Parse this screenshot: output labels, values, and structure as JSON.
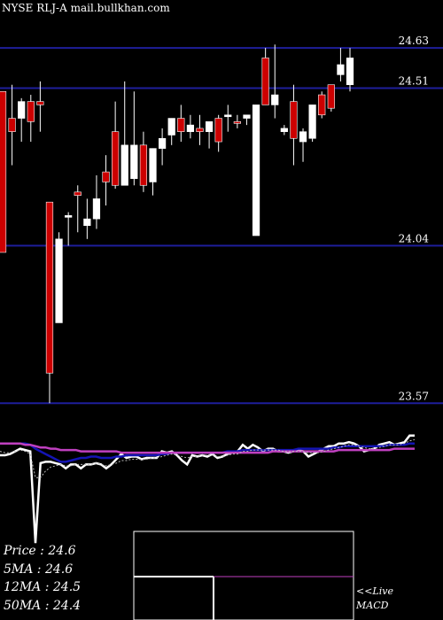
{
  "title": "NYSE RLJ-A mail.bullkhan.com",
  "price_stats": [
    {
      "label": "Price",
      "value": "24.6"
    },
    {
      "label": "5MA",
      "value": "24.6"
    },
    {
      "label": "12MA",
      "value": "24.5"
    },
    {
      "label": "50MA",
      "value": "24.4"
    }
  ],
  "live_label": "<<Live",
  "macd_label": "MACD",
  "chart_data": [
    {
      "type": "candlestick",
      "ylim": [
        23.51,
        24.72
      ],
      "price_levels": [
        "24.63",
        "24.51",
        "24.04",
        "23.57"
      ],
      "candles": [
        {
          "o": 24.5,
          "h": 24.5,
          "l": 24.02,
          "c": 24.02,
          "dir": "down"
        },
        {
          "o": 24.42,
          "h": 24.52,
          "l": 24.28,
          "c": 24.38,
          "dir": "down"
        },
        {
          "o": 24.47,
          "h": 24.48,
          "l": 24.35,
          "c": 24.42,
          "dir": "up"
        },
        {
          "o": 24.41,
          "h": 24.49,
          "l": 24.35,
          "c": 24.47,
          "dir": "down"
        },
        {
          "o": 24.47,
          "h": 24.53,
          "l": 24.38,
          "c": 24.46,
          "dir": "down"
        },
        {
          "o": 24.17,
          "h": 24.17,
          "l": 23.57,
          "c": 23.66,
          "dir": "down"
        },
        {
          "o": 24.06,
          "h": 24.08,
          "l": 23.81,
          "c": 23.81,
          "dir": "up"
        },
        {
          "o": 24.13,
          "h": 24.14,
          "l": 24.04,
          "c": 24.13,
          "dir": "up"
        },
        {
          "o": 24.2,
          "h": 24.22,
          "l": 24.08,
          "c": 24.19,
          "dir": "down"
        },
        {
          "o": 24.1,
          "h": 24.18,
          "l": 24.06,
          "c": 24.12,
          "dir": "up"
        },
        {
          "o": 24.12,
          "h": 24.25,
          "l": 24.09,
          "c": 24.18,
          "dir": "up"
        },
        {
          "o": 24.26,
          "h": 24.31,
          "l": 24.16,
          "c": 24.23,
          "dir": "down"
        },
        {
          "o": 24.38,
          "h": 24.47,
          "l": 24.21,
          "c": 24.22,
          "dir": "down"
        },
        {
          "o": 24.22,
          "h": 24.53,
          "l": 24.22,
          "c": 24.34,
          "dir": "up"
        },
        {
          "o": 24.24,
          "h": 24.5,
          "l": 24.22,
          "c": 24.34,
          "dir": "up"
        },
        {
          "o": 24.34,
          "h": 24.38,
          "l": 24.2,
          "c": 24.22,
          "dir": "down"
        },
        {
          "o": 24.23,
          "h": 24.33,
          "l": 24.19,
          "c": 24.33,
          "dir": "up"
        },
        {
          "o": 24.33,
          "h": 24.39,
          "l": 24.28,
          "c": 24.36,
          "dir": "up"
        },
        {
          "o": 24.37,
          "h": 24.42,
          "l": 24.34,
          "c": 24.42,
          "dir": "up"
        },
        {
          "o": 24.42,
          "h": 24.46,
          "l": 24.35,
          "c": 24.38,
          "dir": "down"
        },
        {
          "o": 24.4,
          "h": 24.43,
          "l": 24.36,
          "c": 24.38,
          "dir": "up"
        },
        {
          "o": 24.38,
          "h": 24.43,
          "l": 24.34,
          "c": 24.39,
          "dir": "down"
        },
        {
          "o": 24.38,
          "h": 24.41,
          "l": 24.33,
          "c": 24.41,
          "dir": "up"
        },
        {
          "o": 24.42,
          "h": 24.43,
          "l": 24.32,
          "c": 24.35,
          "dir": "down"
        },
        {
          "o": 24.43,
          "h": 24.46,
          "l": 24.38,
          "c": 24.43,
          "dir": "up"
        },
        {
          "o": 24.41,
          "h": 24.43,
          "l": 24.39,
          "c": 24.41,
          "dir": "down"
        },
        {
          "o": 24.42,
          "h": 24.43,
          "l": 24.4,
          "c": 24.43,
          "dir": "up"
        },
        {
          "o": 24.46,
          "h": 24.46,
          "l": 24.07,
          "c": 24.07,
          "dir": "up"
        },
        {
          "o": 24.46,
          "h": 24.63,
          "l": 24.46,
          "c": 24.6,
          "dir": "down"
        },
        {
          "o": 24.49,
          "h": 24.64,
          "l": 24.42,
          "c": 24.46,
          "dir": "up"
        },
        {
          "o": 24.39,
          "h": 24.4,
          "l": 24.37,
          "c": 24.38,
          "dir": "up"
        },
        {
          "o": 24.47,
          "h": 24.52,
          "l": 24.28,
          "c": 24.36,
          "dir": "down"
        },
        {
          "o": 24.38,
          "h": 24.39,
          "l": 24.29,
          "c": 24.35,
          "dir": "up"
        },
        {
          "o": 24.36,
          "h": 24.46,
          "l": 24.35,
          "c": 24.46,
          "dir": "up"
        },
        {
          "o": 24.49,
          "h": 24.5,
          "l": 24.42,
          "c": 24.43,
          "dir": "down"
        },
        {
          "o": 24.45,
          "h": 24.52,
          "l": 24.44,
          "c": 24.52,
          "dir": "down"
        },
        {
          "o": 24.58,
          "h": 24.63,
          "l": 24.53,
          "c": 24.55,
          "dir": "up"
        },
        {
          "o": 24.6,
          "h": 24.63,
          "l": 24.5,
          "c": 24.52,
          "dir": "up"
        }
      ]
    },
    {
      "type": "line",
      "ylim": [
        0,
        1
      ],
      "series": [
        {
          "color": "#ffffff",
          "values": [
            0.77,
            0.77,
            0.78,
            0.8,
            0.82,
            0.81,
            0.8,
            0.1,
            0.71,
            0.72,
            0.72,
            0.71,
            0.7,
            0.67,
            0.7,
            0.7,
            0.67,
            0.7,
            0.7,
            0.71,
            0.7,
            0.67,
            0.7,
            0.74,
            0.78,
            0.75,
            0.76,
            0.76,
            0.74,
            0.75,
            0.75,
            0.75,
            0.8,
            0.79,
            0.8,
            0.77,
            0.73,
            0.7,
            0.77,
            0.76,
            0.77,
            0.76,
            0.78,
            0.75,
            0.76,
            0.78,
            0.79,
            0.8,
            0.85,
            0.82,
            0.85,
            0.83,
            0.8,
            0.82,
            0.82,
            0.8,
            0.8,
            0.79,
            0.8,
            0.81,
            0.8,
            0.76,
            0.78,
            0.8,
            0.82,
            0.84,
            0.84,
            0.86,
            0.86,
            0.87,
            0.86,
            0.84,
            0.8,
            0.81,
            0.82,
            0.85,
            0.86,
            0.87,
            0.85,
            0.86,
            0.87,
            0.92,
            0.92
          ]
        },
        {
          "color": "#1414b4",
          "values": [
            0.86,
            0.86,
            0.86,
            0.86,
            0.86,
            0.86,
            0.85,
            0.82,
            0.8,
            0.78,
            0.76,
            0.74,
            0.72,
            0.72,
            0.73,
            0.74,
            0.75,
            0.75,
            0.76,
            0.76,
            0.75,
            0.75,
            0.75,
            0.76,
            0.76,
            0.77,
            0.77,
            0.77,
            0.77,
            0.77,
            0.77,
            0.77,
            0.78,
            0.78,
            0.79,
            0.79,
            0.79,
            0.79,
            0.79,
            0.79,
            0.79,
            0.79,
            0.79,
            0.79,
            0.79,
            0.8,
            0.8,
            0.8,
            0.81,
            0.81,
            0.81,
            0.81,
            0.81,
            0.81,
            0.81,
            0.81,
            0.81,
            0.81,
            0.81,
            0.82,
            0.82,
            0.82,
            0.82,
            0.82,
            0.82,
            0.82,
            0.83,
            0.83,
            0.84,
            0.84,
            0.84,
            0.84,
            0.84,
            0.84,
            0.84,
            0.84,
            0.84,
            0.85,
            0.85,
            0.85,
            0.85,
            0.86,
            0.86
          ]
        },
        {
          "color": "#c040c0",
          "values": [
            0.86,
            0.86,
            0.86,
            0.86,
            0.86,
            0.85,
            0.85,
            0.84,
            0.83,
            0.83,
            0.82,
            0.82,
            0.81,
            0.81,
            0.81,
            0.81,
            0.8,
            0.8,
            0.8,
            0.8,
            0.8,
            0.8,
            0.8,
            0.8,
            0.79,
            0.79,
            0.79,
            0.79,
            0.79,
            0.79,
            0.79,
            0.79,
            0.79,
            0.79,
            0.79,
            0.79,
            0.79,
            0.79,
            0.79,
            0.79,
            0.79,
            0.79,
            0.79,
            0.79,
            0.79,
            0.79,
            0.79,
            0.79,
            0.79,
            0.79,
            0.79,
            0.79,
            0.79,
            0.79,
            0.8,
            0.8,
            0.8,
            0.8,
            0.8,
            0.8,
            0.8,
            0.8,
            0.8,
            0.8,
            0.8,
            0.8,
            0.8,
            0.81,
            0.81,
            0.81,
            0.81,
            0.81,
            0.81,
            0.81,
            0.81,
            0.81,
            0.81,
            0.81,
            0.82,
            0.82,
            0.82,
            0.82,
            0.82
          ]
        },
        {
          "color": "#bbbbbb",
          "dashed": true,
          "values": [
            0.8,
            0.79,
            0.79,
            0.8,
            0.81,
            0.8,
            0.78,
            0.6,
            0.6,
            0.65,
            0.68,
            0.69,
            0.7,
            0.69,
            0.69,
            0.7,
            0.7,
            0.7,
            0.7,
            0.71,
            0.7,
            0.69,
            0.7,
            0.71,
            0.73,
            0.73,
            0.74,
            0.74,
            0.74,
            0.74,
            0.75,
            0.75,
            0.76,
            0.77,
            0.78,
            0.77,
            0.76,
            0.75,
            0.76,
            0.76,
            0.77,
            0.77,
            0.77,
            0.76,
            0.76,
            0.77,
            0.78,
            0.78,
            0.8,
            0.8,
            0.81,
            0.81,
            0.81,
            0.81,
            0.81,
            0.81,
            0.8,
            0.8,
            0.8,
            0.8,
            0.8,
            0.79,
            0.79,
            0.79,
            0.8,
            0.81,
            0.82,
            0.83,
            0.84,
            0.85,
            0.85,
            0.84,
            0.83,
            0.82,
            0.82,
            0.83,
            0.84,
            0.85,
            0.85,
            0.85,
            0.86,
            0.88,
            0.89
          ]
        }
      ]
    }
  ]
}
